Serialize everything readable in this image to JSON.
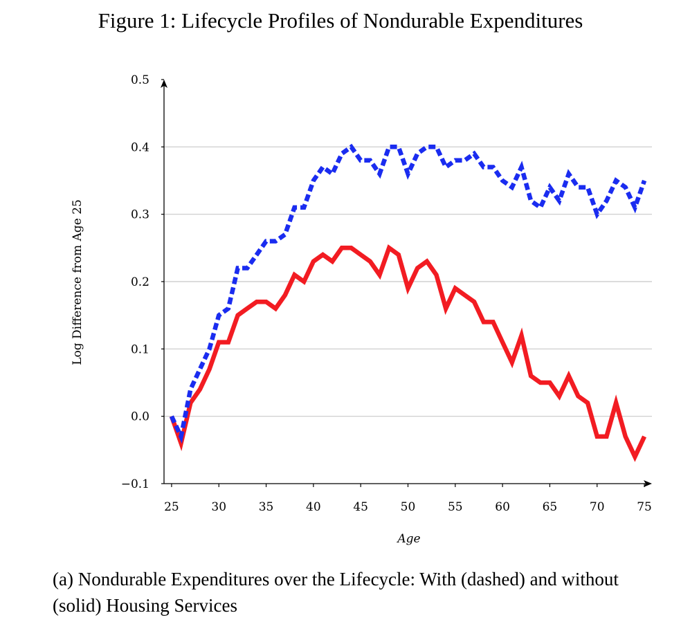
{
  "figure": {
    "title": "Figure 1: Lifecycle Profiles of Nondurable Expenditures",
    "caption": "(a) Nondurable Expenditures over the Lifecycle: With (dashed) and without (solid) Housing Services"
  },
  "chart_data": {
    "type": "line",
    "title": "",
    "xlabel": "Age",
    "ylabel": "Log Difference from Age 25",
    "xlim": [
      24.2,
      75.8
    ],
    "ylim": [
      -0.1,
      0.5
    ],
    "xticks": [
      25,
      30,
      35,
      40,
      45,
      50,
      55,
      60,
      65,
      70,
      75
    ],
    "xtick_labels": [
      "25",
      "30",
      "35",
      "40",
      "45",
      "50",
      "55",
      "60",
      "65",
      "70",
      "75"
    ],
    "yticks": [
      -0.1,
      0.0,
      0.1,
      0.2,
      0.3,
      0.4,
      0.5
    ],
    "ytick_labels": [
      "−0.1",
      "0.0",
      "0.1",
      "0.2",
      "0.3",
      "0.4",
      "0.5"
    ],
    "grid": "horizontal",
    "x": [
      25,
      26,
      27,
      28,
      29,
      30,
      31,
      32,
      33,
      34,
      35,
      36,
      37,
      38,
      39,
      40,
      41,
      42,
      43,
      44,
      45,
      46,
      47,
      48,
      49,
      50,
      51,
      52,
      53,
      54,
      55,
      56,
      57,
      58,
      59,
      60,
      61,
      62,
      63,
      64,
      65,
      66,
      67,
      68,
      69,
      70,
      71,
      72,
      73,
      74,
      75
    ],
    "series": [
      {
        "style": "dashed",
        "color": "#1a2cf0",
        "values": [
          0.0,
          -0.03,
          0.04,
          0.07,
          0.1,
          0.15,
          0.16,
          0.22,
          0.22,
          0.24,
          0.26,
          0.26,
          0.27,
          0.31,
          0.31,
          0.35,
          0.37,
          0.36,
          0.39,
          0.4,
          0.38,
          0.38,
          0.36,
          0.4,
          0.4,
          0.36,
          0.39,
          0.4,
          0.4,
          0.37,
          0.38,
          0.38,
          0.39,
          0.37,
          0.37,
          0.35,
          0.34,
          0.37,
          0.32,
          0.31,
          0.34,
          0.32,
          0.36,
          0.34,
          0.34,
          0.3,
          0.32,
          0.35,
          0.34,
          0.31,
          0.35
        ]
      },
      {
        "style": "solid",
        "color": "#f21c22",
        "values": [
          0.0,
          -0.04,
          0.02,
          0.04,
          0.07,
          0.11,
          0.11,
          0.15,
          0.16,
          0.17,
          0.17,
          0.16,
          0.18,
          0.21,
          0.2,
          0.23,
          0.24,
          0.23,
          0.25,
          0.25,
          0.24,
          0.23,
          0.21,
          0.25,
          0.24,
          0.19,
          0.22,
          0.23,
          0.21,
          0.16,
          0.19,
          0.18,
          0.17,
          0.14,
          0.14,
          0.11,
          0.08,
          0.12,
          0.06,
          0.05,
          0.05,
          0.03,
          0.06,
          0.03,
          0.02,
          -0.03,
          -0.03,
          0.02,
          -0.03,
          -0.06,
          -0.03
        ]
      }
    ]
  }
}
